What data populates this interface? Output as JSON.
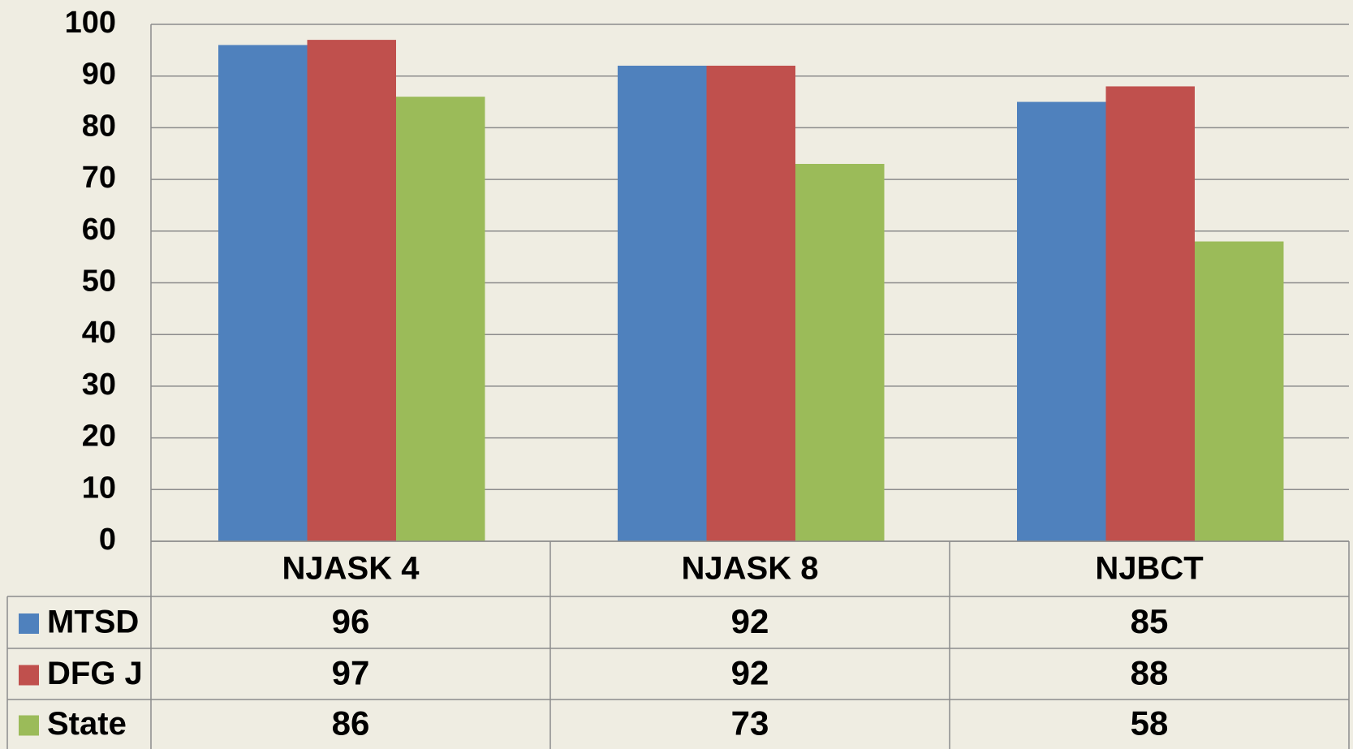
{
  "chart_data": {
    "type": "bar",
    "categories": [
      "NJASK 4",
      "NJASK 8",
      "NJBCT"
    ],
    "series": [
      {
        "name": "MTSD",
        "color": "#4f81bd",
        "values": [
          96,
          92,
          85
        ]
      },
      {
        "name": "DFG J",
        "color": "#c0504d",
        "values": [
          97,
          92,
          88
        ]
      },
      {
        "name": "State",
        "color": "#9bbb59",
        "values": [
          86,
          73,
          58
        ]
      }
    ],
    "ylim": [
      0,
      100
    ],
    "yticks": [
      0,
      10,
      20,
      30,
      40,
      50,
      60,
      70,
      80,
      90,
      100
    ],
    "grid": true,
    "data_table": true
  }
}
